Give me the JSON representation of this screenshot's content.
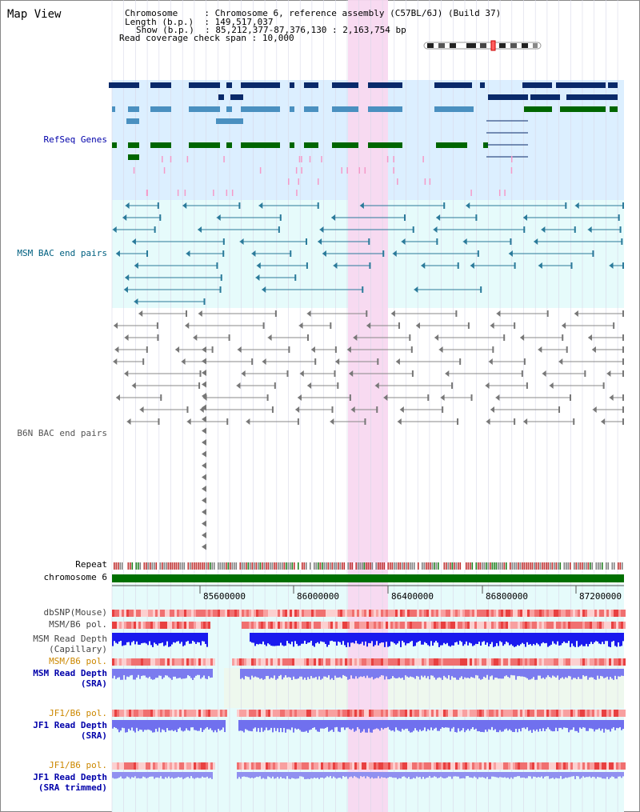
{
  "title": "Map View",
  "info": {
    "chromosome_label": "Chromosome",
    "chromosome_value": "Chromosome 6, reference assembly (C57BL/6J) (Build 37)",
    "length_label": "Length (b.p.)",
    "length_value": "149,517,037",
    "show_label": "Show (b.p.)",
    "show_value": "85,212,377-87,376,130 : 2,163,754 bp",
    "span_label": "Read coverage check span",
    "span_value": "10,000"
  },
  "tracks": {
    "refseq": "RefSeq Genes",
    "msm_bac": "MSM BAC end pairs",
    "b6n_bac": "B6N BAC end pairs",
    "repeat": "Repeat",
    "chromosome": "chromosome 6",
    "dbsnp": "dbSNP(Mouse)",
    "msm_b6_pol_1": "MSM/B6 pol.",
    "msm_read_depth_cap_1": "MSM Read Depth",
    "msm_read_depth_cap_2": "(Capillary)",
    "msm_b6_pol_2": "MSM/B6 pol.",
    "msm_read_depth_sra_1": "MSM Read Depth",
    "msm_read_depth_sra_2": "(SRA)",
    "jf1_b6_pol_1": "JF1/B6 pol.",
    "jf1_read_depth_sra_1": "JF1 Read Depth",
    "jf1_read_depth_sra_2": "(SRA)",
    "jf1_b6_pol_2": "JF1/B6 pol.",
    "jf1_read_depth_trim_1": "JF1 Read Depth",
    "jf1_read_depth_trim_2": "(SRA trimmed)"
  },
  "axis": {
    "ticks": [
      "85600000",
      "86000000",
      "86400000",
      "86800000",
      "87200000"
    ]
  },
  "colors": {
    "refseq_bg": "#dcefff",
    "msm_bg": "#e6fbfb",
    "highlight": "#f8d8f0",
    "gene_dark": "#0a2a6a",
    "gene_mid": "#4a90c0",
    "gene_green": "#006600",
    "msm_line": "#2a7a9a",
    "b6n_line": "#888888",
    "chrom_green": "#007000",
    "label_blue": "#0000aa",
    "label_teal": "#006080",
    "label_orange": "#cc8800"
  }
}
